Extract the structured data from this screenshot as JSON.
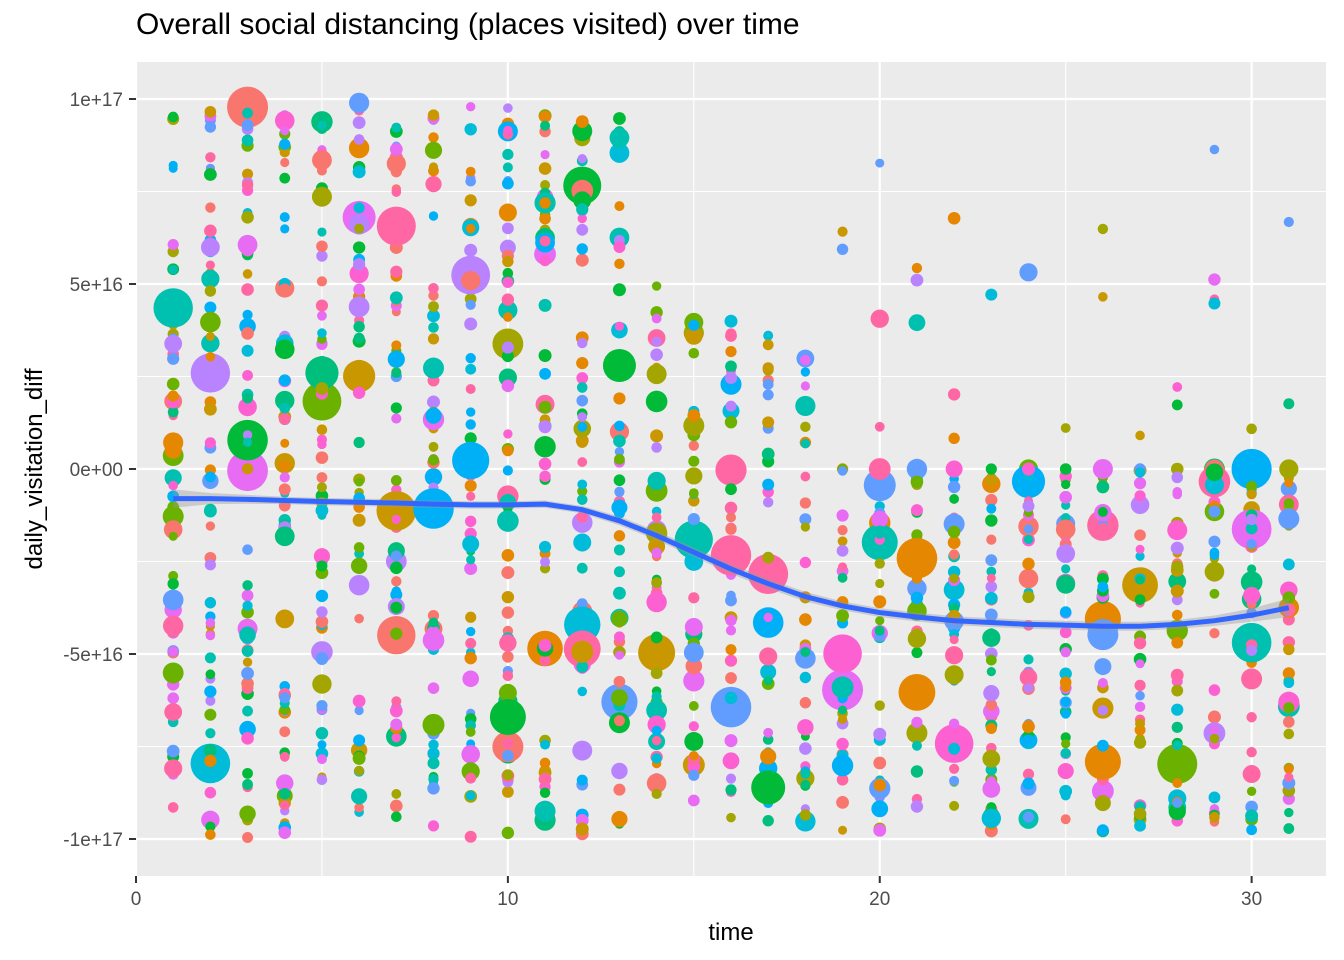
{
  "chart_data": {
    "type": "scatter",
    "title": "Overall social distancing (places visited) over time",
    "xlabel": "time",
    "ylabel": "daily_visitation_diff",
    "xlim": [
      0,
      32
    ],
    "ylim": [
      -1.1e+17,
      1.1e+17
    ],
    "x_ticks": [
      0,
      10,
      20,
      30
    ],
    "x_tick_labels": [
      "0",
      "10",
      "20",
      "30"
    ],
    "y_ticks": [
      1e+17,
      5e+16,
      0,
      -5e+16,
      -1e+17
    ],
    "y_tick_labels": [
      "1e+17",
      "5e+16",
      "0e+00",
      "-5e+16",
      "-1e+17"
    ],
    "grid": true,
    "legend": "none",
    "point_colors": [
      "#F8766D",
      "#E58700",
      "#C99800",
      "#A3A500",
      "#6BB100",
      "#00BA38",
      "#00BF7D",
      "#00C0AF",
      "#00BCD8",
      "#00B0F6",
      "#619CFF",
      "#B983FF",
      "#E76BF3",
      "#FD61D1",
      "#FF67A4"
    ],
    "points_per_day": [
      64,
      60,
      62,
      60,
      60,
      58,
      62,
      58,
      55,
      60,
      50,
      58,
      58,
      45,
      40,
      42,
      40,
      35,
      38,
      40,
      40,
      42,
      42,
      40,
      42,
      42,
      42,
      40,
      42,
      42,
      42
    ],
    "smooth": {
      "color": "#3366FF",
      "band_color": "#999999",
      "x": [
        1,
        2,
        3,
        4,
        5,
        6,
        7,
        8,
        9,
        10,
        11,
        12,
        13,
        14,
        15,
        16,
        17,
        18,
        19,
        20,
        21,
        22,
        23,
        24,
        25,
        26,
        27,
        28,
        29,
        30,
        31
      ],
      "y": [
        -8000000000000000.0,
        -8000000000000000.0,
        -8200000000000000.0,
        -8500000000000000.0,
        -8800000000000000.0,
        -9000000000000000.0,
        -9200000000000000.0,
        -9500000000000000.0,
        -9700000000000000.0,
        -9700000000000000.0,
        -9500000000000000.0,
        -1.1e+16,
        -1.4e+16,
        -1.8e+16,
        -2.25e+16,
        -2.7e+16,
        -3.1e+16,
        -3.45e+16,
        -3.7e+16,
        -3.88e+16,
        -4e+16,
        -4.1e+16,
        -4.15e+16,
        -4.2e+16,
        -4.22e+16,
        -4.25e+16,
        -4.25e+16,
        -4.2e+16,
        -4.1e+16,
        -3.95e+16,
        -3.75e+16
      ],
      "band": [
        2500000000000000.0,
        1500000000000000.0,
        1200000000000000.0,
        1000000000000000.0,
        1000000000000000.0,
        1000000000000000.0,
        1000000000000000.0,
        1000000000000000.0,
        1000000000000000.0,
        1000000000000000.0,
        1000000000000000.0,
        1000000000000000.0,
        1200000000000000.0,
        1200000000000000.0,
        1300000000000000.0,
        1300000000000000.0,
        1300000000000000.0,
        1300000000000000.0,
        1200000000000000.0,
        1200000000000000.0,
        1200000000000000.0,
        1200000000000000.0,
        1200000000000000.0,
        1200000000000000.0,
        1200000000000000.0,
        1200000000000000.0,
        1200000000000000.0,
        1200000000000000.0,
        1400000000000000.0,
        1800000000000000.0,
        2500000000000000.0
      ]
    }
  }
}
